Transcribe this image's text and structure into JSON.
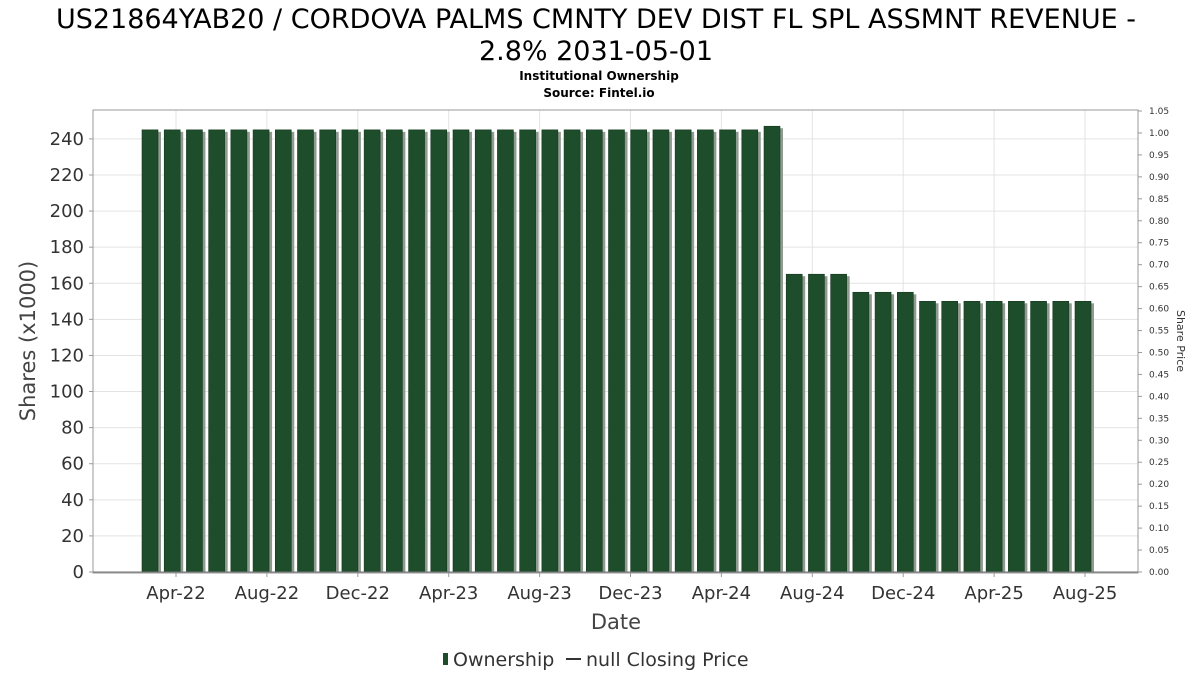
{
  "chart_data": {
    "type": "bar",
    "title": "US21864YAB20 / CORDOVA PALMS CMNTY DEV DIST FL SPL ASSMNT REVENUE - 2.8% 2031-05-01",
    "title_lines": [
      "US21864YAB20 / CORDOVA PALMS CMNTY DEV DIST FL SPL ASSMNT REVENUE -",
      "2.8% 2031-05-01"
    ],
    "subtitle": "Institutional Ownership",
    "source": "Source: Fintel.io",
    "xlabel": "Date",
    "ylabel": "Shares (x1000)",
    "y2label": "Share Price",
    "ylim": [
      0,
      256
    ],
    "y2lim": [
      0,
      1.05
    ],
    "yticks": [
      "0",
      "20",
      "40",
      "60",
      "80",
      "100",
      "120",
      "140",
      "160",
      "180",
      "200",
      "220",
      "240"
    ],
    "y2ticks": [
      "0.00",
      "0.05",
      "0.10",
      "0.15",
      "0.20",
      "0.25",
      "0.30",
      "0.35",
      "0.40",
      "0.45",
      "0.50",
      "0.55",
      "0.60",
      "0.65",
      "0.70",
      "0.75",
      "0.80",
      "0.85",
      "0.90",
      "0.95",
      "1.00",
      "1.05"
    ],
    "xticks": [
      "Apr-22",
      "Aug-22",
      "Dec-22",
      "Apr-23",
      "Aug-23",
      "Dec-23",
      "Apr-24",
      "Aug-24",
      "Dec-24",
      "Apr-25",
      "Aug-25"
    ],
    "grid": true,
    "legend_position": "bottom",
    "legend": [
      "Ownership",
      "null Closing Price"
    ],
    "series": [
      {
        "name": "Ownership",
        "color": "#1e4d2b",
        "values": [
          245,
          245,
          245,
          245,
          245,
          245,
          245,
          245,
          245,
          245,
          245,
          245,
          245,
          245,
          245,
          245,
          245,
          245,
          245,
          245,
          245,
          245,
          245,
          245,
          245,
          245,
          245,
          245,
          247,
          165,
          165,
          165,
          155,
          155,
          155,
          150,
          150,
          150,
          150,
          150,
          150,
          150,
          150
        ]
      }
    ]
  }
}
